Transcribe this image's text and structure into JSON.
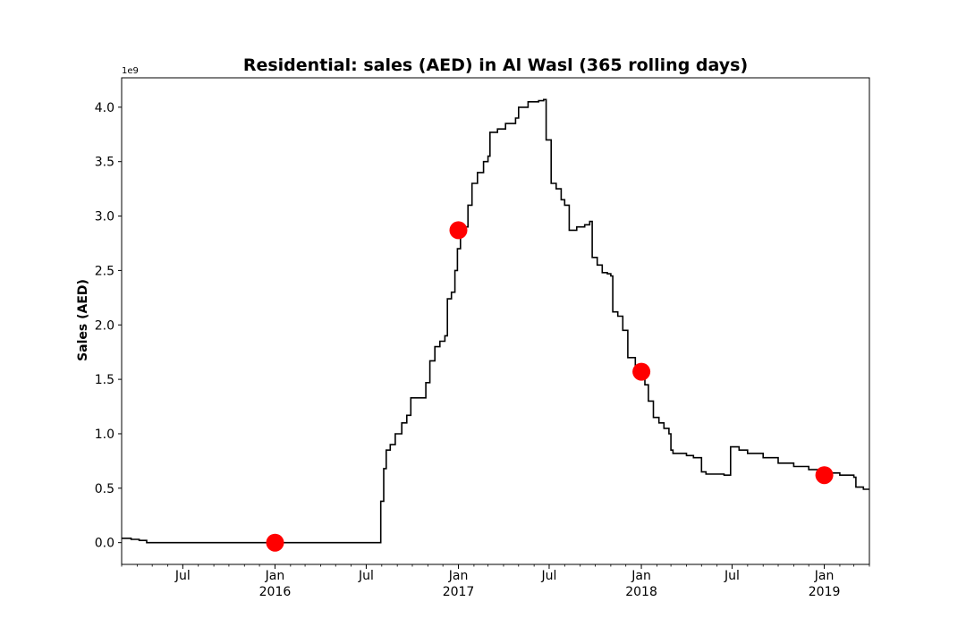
{
  "chart_data": {
    "type": "line",
    "title": "Residential: sales (AED) in Al Wasl (365 rolling days)",
    "ylabel": "Sales (AED)",
    "xlabel": "",
    "y_offset_label": "1e9",
    "y_scale_multiplier": 1000000000,
    "ylim": [
      -0.2,
      4.27
    ],
    "xlim": [
      "2015-03-01",
      "2019-04-01"
    ],
    "yticks": [
      {
        "value": 0.0,
        "label": "0.0"
      },
      {
        "value": 0.5,
        "label": "0.5"
      },
      {
        "value": 1.0,
        "label": "1.0"
      },
      {
        "value": 1.5,
        "label": "1.5"
      },
      {
        "value": 2.0,
        "label": "2.0"
      },
      {
        "value": 2.5,
        "label": "2.5"
      },
      {
        "value": 3.0,
        "label": "3.0"
      },
      {
        "value": 3.5,
        "label": "3.5"
      },
      {
        "value": 4.0,
        "label": "4.0"
      }
    ],
    "xticks_major": [
      {
        "date": "2015-07-01",
        "label": "Jul",
        "year": ""
      },
      {
        "date": "2016-01-01",
        "label": "Jan",
        "year": "2016"
      },
      {
        "date": "2016-07-01",
        "label": "Jul",
        "year": ""
      },
      {
        "date": "2017-01-01",
        "label": "Jan",
        "year": "2017"
      },
      {
        "date": "2017-07-01",
        "label": "Jul",
        "year": ""
      },
      {
        "date": "2018-01-01",
        "label": "Jan",
        "year": "2018"
      },
      {
        "date": "2018-07-01",
        "label": "Jul",
        "year": ""
      },
      {
        "date": "2019-01-01",
        "label": "Jan",
        "year": "2019"
      }
    ],
    "series": [
      {
        "color": "#000000",
        "step": true,
        "points": [
          [
            "2015-03-01",
            0.04
          ],
          [
            "2015-03-20",
            0.03
          ],
          [
            "2015-04-05",
            0.02
          ],
          [
            "2015-04-20",
            0.0
          ],
          [
            "2016-07-28",
            0.0
          ],
          [
            "2016-07-30",
            0.38
          ],
          [
            "2016-08-05",
            0.68
          ],
          [
            "2016-08-10",
            0.85
          ],
          [
            "2016-08-18",
            0.9
          ],
          [
            "2016-08-28",
            1.0
          ],
          [
            "2016-09-10",
            1.1
          ],
          [
            "2016-09-20",
            1.17
          ],
          [
            "2016-09-28",
            1.33
          ],
          [
            "2016-10-28",
            1.47
          ],
          [
            "2016-11-05",
            1.67
          ],
          [
            "2016-11-15",
            1.8
          ],
          [
            "2016-11-25",
            1.85
          ],
          [
            "2016-12-05",
            1.9
          ],
          [
            "2016-12-10",
            2.24
          ],
          [
            "2016-12-18",
            2.3
          ],
          [
            "2016-12-25",
            2.5
          ],
          [
            "2016-12-30",
            2.7
          ],
          [
            "2017-01-05",
            2.85
          ],
          [
            "2017-01-12",
            2.9
          ],
          [
            "2017-01-20",
            3.1
          ],
          [
            "2017-01-28",
            3.3
          ],
          [
            "2017-02-08",
            3.4
          ],
          [
            "2017-02-20",
            3.5
          ],
          [
            "2017-03-01",
            3.55
          ],
          [
            "2017-03-05",
            3.77
          ],
          [
            "2017-03-20",
            3.8
          ],
          [
            "2017-04-05",
            3.85
          ],
          [
            "2017-04-25",
            3.9
          ],
          [
            "2017-05-01",
            4.0
          ],
          [
            "2017-05-20",
            4.05
          ],
          [
            "2017-06-10",
            4.06
          ],
          [
            "2017-06-20",
            4.07
          ],
          [
            "2017-06-25",
            3.7
          ],
          [
            "2017-07-05",
            3.3
          ],
          [
            "2017-07-15",
            3.25
          ],
          [
            "2017-07-25",
            3.15
          ],
          [
            "2017-08-01",
            3.1
          ],
          [
            "2017-08-10",
            2.87
          ],
          [
            "2017-08-25",
            2.9
          ],
          [
            "2017-09-10",
            2.92
          ],
          [
            "2017-09-20",
            2.95
          ],
          [
            "2017-09-25",
            2.62
          ],
          [
            "2017-10-05",
            2.55
          ],
          [
            "2017-10-15",
            2.48
          ],
          [
            "2017-10-25",
            2.47
          ],
          [
            "2017-11-01",
            2.45
          ],
          [
            "2017-11-05",
            2.12
          ],
          [
            "2017-11-15",
            2.08
          ],
          [
            "2017-11-25",
            1.95
          ],
          [
            "2017-12-05",
            1.7
          ],
          [
            "2017-12-20",
            1.6
          ],
          [
            "2018-01-01",
            1.57
          ],
          [
            "2018-01-08",
            1.45
          ],
          [
            "2018-01-15",
            1.3
          ],
          [
            "2018-01-25",
            1.15
          ],
          [
            "2018-02-05",
            1.1
          ],
          [
            "2018-02-15",
            1.05
          ],
          [
            "2018-02-25",
            1.0
          ],
          [
            "2018-03-01",
            0.85
          ],
          [
            "2018-03-05",
            0.82
          ],
          [
            "2018-04-01",
            0.8
          ],
          [
            "2018-04-15",
            0.78
          ],
          [
            "2018-05-01",
            0.65
          ],
          [
            "2018-05-10",
            0.63
          ],
          [
            "2018-06-01",
            0.63
          ],
          [
            "2018-06-15",
            0.62
          ],
          [
            "2018-06-28",
            0.88
          ],
          [
            "2018-07-15",
            0.85
          ],
          [
            "2018-08-01",
            0.82
          ],
          [
            "2018-09-01",
            0.78
          ],
          [
            "2018-10-01",
            0.73
          ],
          [
            "2018-11-01",
            0.7
          ],
          [
            "2018-12-01",
            0.67
          ],
          [
            "2019-01-01",
            0.64
          ],
          [
            "2019-02-01",
            0.62
          ],
          [
            "2019-03-01",
            0.6
          ],
          [
            "2019-03-05",
            0.51
          ],
          [
            "2019-03-20",
            0.49
          ],
          [
            "2019-04-01",
            0.49
          ]
        ]
      }
    ],
    "markers": {
      "color": "#ff0000",
      "points": [
        [
          "2016-01-01",
          0.0
        ],
        [
          "2017-01-01",
          2.87
        ],
        [
          "2018-01-01",
          1.57
        ],
        [
          "2019-01-01",
          0.62
        ]
      ]
    },
    "grid": false,
    "legend": "none"
  }
}
